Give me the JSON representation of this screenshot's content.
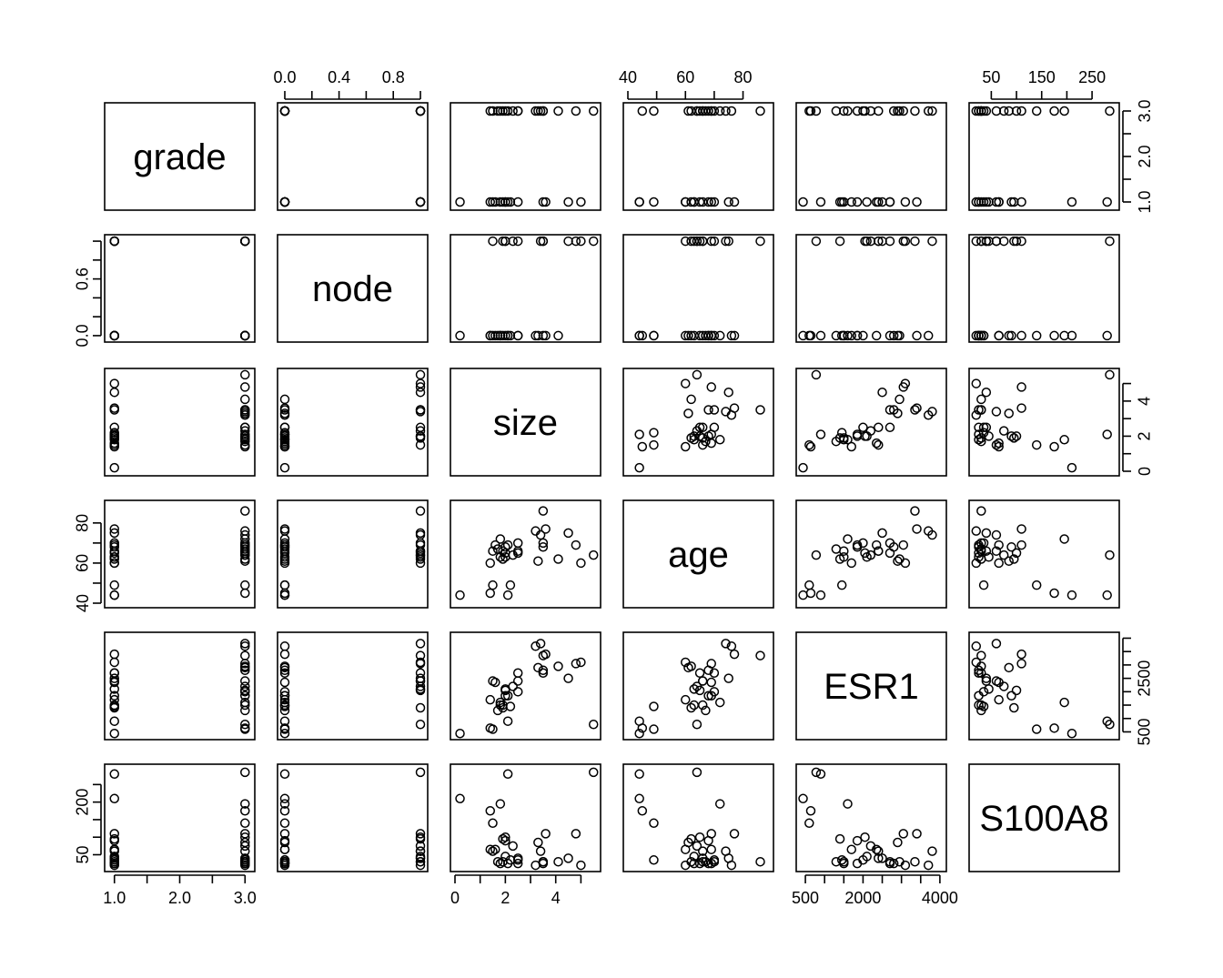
{
  "chart_data": {
    "type": "scatter",
    "subtype": "pairs-matrix",
    "title": "",
    "variables": [
      {
        "name": "grade",
        "lim": [
          0.92,
          3.08
        ],
        "ticks": [
          1.0,
          1.5,
          2.0,
          2.5,
          3.0
        ],
        "tick_labels": [
          "1.0",
          "",
          "2.0",
          "",
          "3.0"
        ]
      },
      {
        "name": "node",
        "lim": [
          -0.02,
          1.02
        ],
        "ticks": [
          0.0,
          0.2,
          0.4,
          0.6,
          0.8,
          1.0
        ],
        "tick_labels": [
          "0.0",
          "",
          "0.4",
          "",
          "0.8",
          ""
        ],
        "left_tick_labels": [
          "0.0",
          "",
          "",
          "0.6",
          "",
          ""
        ]
      },
      {
        "name": "size",
        "lim": [
          0.0,
          5.6
        ],
        "ticks": [
          0,
          1,
          2,
          3,
          4,
          5
        ],
        "tick_labels": [
          "0",
          "",
          "2",
          "",
          "4",
          ""
        ],
        "right_tick_labels": [
          "0",
          "",
          "2",
          "",
          "4",
          ""
        ]
      },
      {
        "name": "age",
        "lim": [
          40,
          89
        ],
        "ticks": [
          40,
          50,
          60,
          70,
          80
        ],
        "tick_labels": [
          "40",
          "",
          "60",
          "",
          "80"
        ]
      },
      {
        "name": "ESR1",
        "lim": [
          380,
          4050
        ],
        "ticks": [
          500,
          1000,
          1500,
          2000,
          2500,
          3000,
          3500,
          4000
        ],
        "tick_labels": [
          "500",
          "",
          "",
          "2000",
          "",
          "",
          "",
          "4000"
        ],
        "right_tick_labels": [
          "500",
          "",
          "",
          "",
          "2500",
          "",
          "",
          ""
        ]
      },
      {
        "name": "S100A8",
        "lim": [
          15,
          295
        ],
        "ticks": [
          50,
          100,
          150,
          200,
          250
        ],
        "tick_labels": [
          "50",
          "",
          "150",
          "",
          "250"
        ],
        "left_tick_labels": [
          "50",
          "",
          "",
          "200",
          ""
        ],
        "top_tick_labels": [
          "50",
          "",
          "150",
          "",
          "250"
        ]
      }
    ],
    "columns": [
      "grade",
      "node",
      "size",
      "age",
      "ESR1",
      "S100A8"
    ],
    "rows": [
      [
        3,
        1,
        5.5,
        64,
        780,
        285
      ],
      [
        3,
        1,
        4.8,
        69,
        3050,
        110
      ],
      [
        3,
        1,
        3.5,
        86,
        3350,
        30
      ],
      [
        3,
        1,
        3.4,
        74,
        3800,
        60
      ],
      [
        3,
        1,
        2.5,
        66,
        2400,
        40
      ],
      [
        3,
        1,
        2.3,
        64,
        2200,
        75
      ],
      [
        3,
        1,
        2.0,
        65,
        2050,
        100
      ],
      [
        3,
        0,
        4.1,
        62,
        2950,
        30
      ],
      [
        3,
        0,
        3.5,
        68,
        2800,
        25
      ],
      [
        3,
        0,
        3.3,
        61,
        2900,
        85
      ],
      [
        3,
        0,
        3.2,
        76,
        3700,
        20
      ],
      [
        3,
        0,
        2.5,
        70,
        2000,
        35
      ],
      [
        3,
        0,
        2.1,
        69,
        1850,
        25
      ],
      [
        3,
        0,
        1.9,
        66,
        1500,
        30
      ],
      [
        3,
        0,
        1.8,
        72,
        1600,
        195
      ],
      [
        3,
        0,
        1.7,
        67,
        1300,
        30
      ],
      [
        3,
        0,
        1.5,
        49,
        600,
        140
      ],
      [
        3,
        0,
        1.4,
        45,
        640,
        175
      ],
      [
        1,
        1,
        5.0,
        60,
        3100,
        20
      ],
      [
        1,
        1,
        4.5,
        75,
        2500,
        40
      ],
      [
        1,
        1,
        3.5,
        70,
        2700,
        30
      ],
      [
        1,
        1,
        2.0,
        63,
        2100,
        45
      ],
      [
        1,
        1,
        1.9,
        62,
        1400,
        95
      ],
      [
        1,
        1,
        1.5,
        66,
        2400,
        60
      ],
      [
        1,
        0,
        3.6,
        77,
        3400,
        110
      ],
      [
        1,
        0,
        2.5,
        65,
        2700,
        25
      ],
      [
        1,
        0,
        2.0,
        68,
        1850,
        90
      ],
      [
        1,
        0,
        1.8,
        63,
        1500,
        25
      ],
      [
        1,
        0,
        1.6,
        69,
        2350,
        65
      ],
      [
        1,
        0,
        1.4,
        60,
        1700,
        65
      ],
      [
        1,
        0,
        2.2,
        49,
        1450,
        35
      ],
      [
        1,
        0,
        2.1,
        44,
        900,
        280
      ],
      [
        1,
        0,
        0.2,
        44,
        440,
        210
      ]
    ]
  }
}
